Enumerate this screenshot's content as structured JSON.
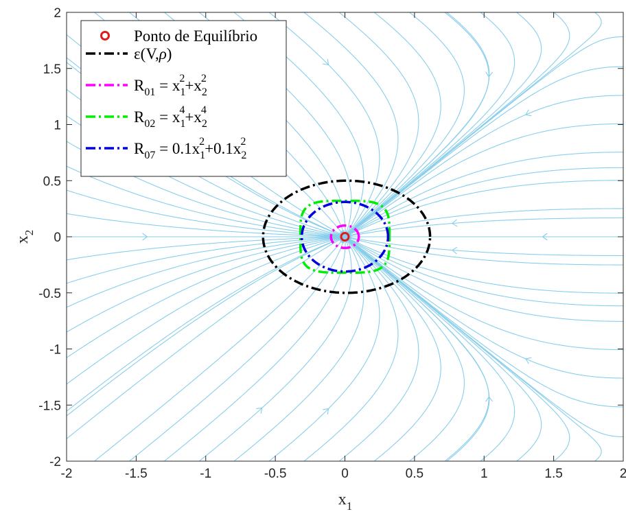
{
  "chart_data": {
    "type": "line",
    "xlim": [
      -2,
      2
    ],
    "ylim": [
      -2,
      2
    ],
    "xticks": [
      "-2",
      "-1.5",
      "-1",
      "-0.5",
      "0",
      "0.5",
      "1",
      "1.5",
      "2"
    ],
    "yticks": [
      "-2",
      "-1.5",
      "-1",
      "-0.5",
      "0",
      "0.5",
      "1",
      "1.5",
      "2"
    ],
    "xlabel": {
      "base": "x",
      "sub": "1"
    },
    "ylabel": {
      "base": "x",
      "sub": "2"
    },
    "grid": false,
    "legend_position": "top-left",
    "background_color": "#87ceeb",
    "background": "streamlines of the vector field",
    "series": [
      {
        "name": "Ponto de Equilíbrio",
        "legend": {
          "parts": [
            {
              "t": "Ponto de Equilíbrio"
            }
          ]
        },
        "type": "marker",
        "marker": "circle",
        "color": "#e31a1c",
        "x": [
          0
        ],
        "y": [
          0
        ]
      },
      {
        "name": "ε(V,ρ)",
        "legend": {
          "parts": [
            {
              "t": "ε(V,"
            },
            {
              "t": "ρ",
              "i": true
            },
            {
              "t": ")"
            }
          ]
        },
        "type": "closed-curve",
        "shape": "ellipse",
        "center": [
          0.012,
          0
        ],
        "rx": 0.6,
        "ry": 0.5,
        "x_extent": [
          -0.6,
          0.62
        ],
        "y_extent": [
          -0.5,
          0.5
        ],
        "color": "#000000",
        "dash": "dashdot"
      },
      {
        "name": "R01 = x1^2+x2^2",
        "legend": {
          "parts": [
            {
              "t": "R"
            },
            {
              "t": "01",
              "b": true
            },
            {
              "t": " = x"
            },
            {
              "t": "1",
              "b": true
            },
            {
              "t": "2",
              "p": true
            },
            {
              "t": "+x"
            },
            {
              "t": "2",
              "b": true
            },
            {
              "t": "2",
              "p": true
            }
          ]
        },
        "type": "closed-curve",
        "shape": "circle",
        "radius": 0.1,
        "color": "#ff00ff",
        "dash": "dashdot"
      },
      {
        "name": "R02 = x1^4+x2^4",
        "legend": {
          "parts": [
            {
              "t": "R"
            },
            {
              "t": "02",
              "b": true
            },
            {
              "t": " = x"
            },
            {
              "t": "1",
              "b": true
            },
            {
              "t": "4",
              "p": true
            },
            {
              "t": "+x"
            },
            {
              "t": "2",
              "b": true
            },
            {
              "t": "4",
              "p": true
            }
          ]
        },
        "type": "closed-curve",
        "shape": "superellipse",
        "exponent": 4,
        "radius": 0.32,
        "color": "#00ee00",
        "dash": "dashdot"
      },
      {
        "name": "R07 = 0.1x1^2+0.1x2^2",
        "legend": {
          "parts": [
            {
              "t": "R"
            },
            {
              "t": "07",
              "b": true
            },
            {
              "t": " = 0.1x"
            },
            {
              "t": "1",
              "b": true
            },
            {
              "t": "2",
              "p": true
            },
            {
              "t": "+0.1x"
            },
            {
              "t": "2",
              "b": true
            },
            {
              "t": "2",
              "p": true
            }
          ]
        },
        "type": "closed-curve",
        "shape": "circle",
        "radius": 0.31,
        "color": "#0000dd",
        "dash": "dashdot"
      }
    ]
  }
}
